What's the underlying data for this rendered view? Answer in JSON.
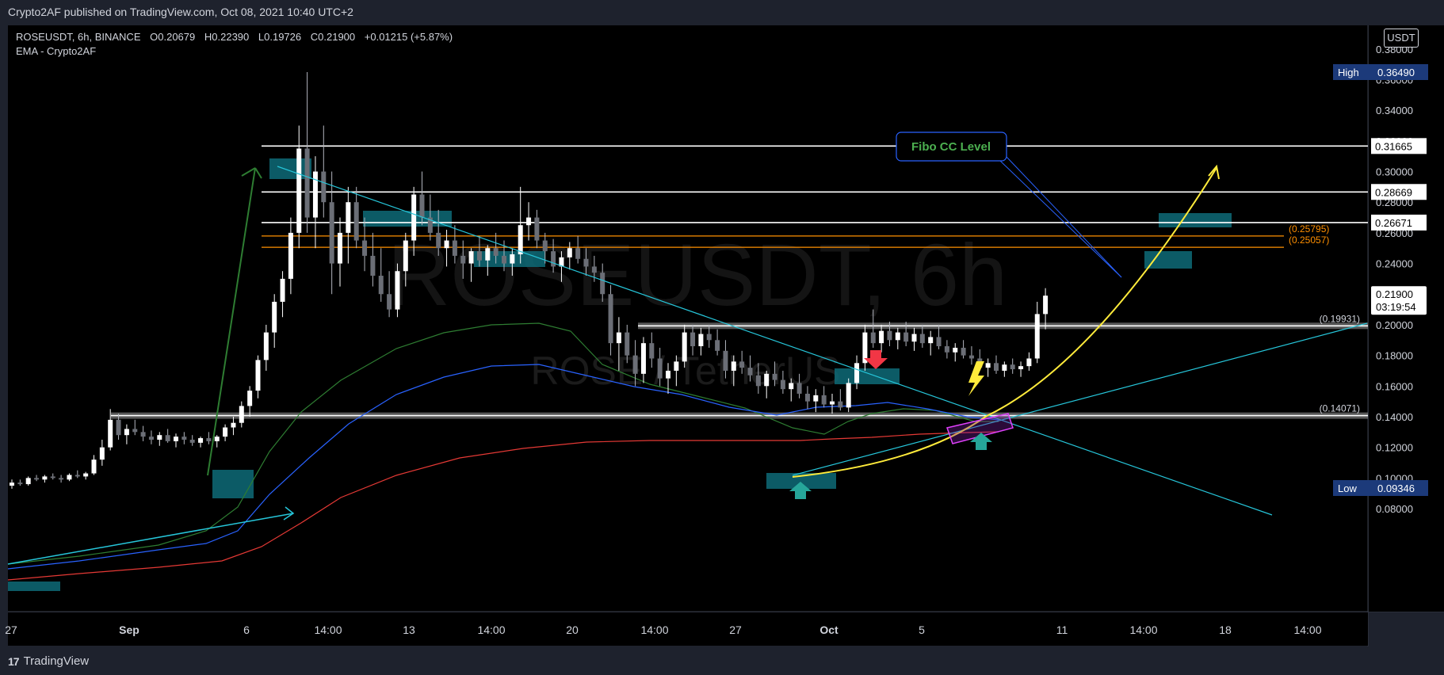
{
  "header": {
    "publisher_text": "Crypto2AF published on TradingView.com, Oct 08, 2021 10:40 UTC+2"
  },
  "legend": {
    "symbol_line": "ROSEUSDT, 6h, BINANCE",
    "open_label": "O",
    "open": "0.20679",
    "high_label": "H",
    "high": "0.22390",
    "low_label": "L",
    "low": "0.19726",
    "close_label": "C",
    "close": "0.21900",
    "change": "+0.01215 (+5.87%)",
    "indicator": "EMA - Crypto2AF"
  },
  "currency": "USDT",
  "watermark": {
    "main": "ROSEUSDT, 6h",
    "sub": "ROSE / TetherUS"
  },
  "footer": {
    "brand": "TradingView"
  },
  "colors": {
    "background": "#000000",
    "candle": "#ffffff",
    "ema_green": "#2e7d32",
    "ema_blue": "#2962ff",
    "ema_red": "#e53935",
    "trendline": "#26c6da",
    "fib": "#ff8f00",
    "zone": "#0e6b78",
    "curve": "#ffeb3b",
    "highlight": "#e040fb",
    "arrow_red": "#f23645",
    "arrow_teal": "#26a69a"
  },
  "chart_data": {
    "type": "candlestick",
    "y_axis": {
      "min": 0.065,
      "max": 0.395,
      "ticks": [
        0.08,
        0.1,
        0.12,
        0.14,
        0.16,
        0.18,
        0.2,
        0.22,
        0.24,
        0.26,
        0.28,
        0.3,
        0.32,
        0.34,
        0.36,
        0.38
      ]
    },
    "x_axis": {
      "ticks": [
        "27",
        "Sep",
        "6",
        "14:00",
        "13",
        "14:00",
        "20",
        "14:00",
        "27",
        "Oct",
        "5",
        "11",
        "14:00",
        "18",
        "14:00"
      ]
    },
    "price_labels": {
      "high": {
        "label": "High",
        "value": 0.3649,
        "text": "0.36490"
      },
      "low": {
        "label": "Low",
        "value": 0.09346,
        "text": "0.09346"
      },
      "current": {
        "value": 0.219,
        "text": "0.21900",
        "countdown": "03:19:54"
      },
      "levels": [
        {
          "value": 0.31665,
          "text": "0.31665"
        },
        {
          "value": 0.28669,
          "text": "0.28669"
        },
        {
          "value": 0.26671,
          "text": "0.26671"
        }
      ]
    },
    "horizontal_levels": [
      {
        "value": 0.31665,
        "color": "#ffffff"
      },
      {
        "value": 0.28669,
        "color": "#ffffff"
      },
      {
        "value": 0.26671,
        "color": "#ffffff"
      },
      {
        "value": 0.25795,
        "color": "#ff8f00",
        "label": "(0.25795)"
      },
      {
        "value": 0.25057,
        "color": "#ff8f00",
        "label": "(0.25057)"
      },
      {
        "value": 0.19931,
        "color": "#ffffff",
        "label": "(0.19931)"
      },
      {
        "value": 0.14071,
        "color": "#ffffff",
        "label": "(0.14071)"
      }
    ],
    "annotation": {
      "text": "Fibo CC Level"
    },
    "candles": [
      [
        0.095,
        0.099,
        0.093,
        0.097
      ],
      [
        0.097,
        0.099,
        0.095,
        0.096
      ],
      [
        0.096,
        0.101,
        0.095,
        0.1
      ],
      [
        0.1,
        0.102,
        0.098,
        0.099
      ],
      [
        0.099,
        0.102,
        0.097,
        0.101
      ],
      [
        0.101,
        0.103,
        0.099,
        0.1
      ],
      [
        0.1,
        0.102,
        0.097,
        0.099
      ],
      [
        0.099,
        0.103,
        0.098,
        0.102
      ],
      [
        0.102,
        0.105,
        0.1,
        0.101
      ],
      [
        0.101,
        0.104,
        0.099,
        0.103
      ],
      [
        0.103,
        0.115,
        0.102,
        0.112
      ],
      [
        0.112,
        0.125,
        0.108,
        0.12
      ],
      [
        0.12,
        0.145,
        0.118,
        0.138
      ],
      [
        0.138,
        0.142,
        0.125,
        0.128
      ],
      [
        0.128,
        0.135,
        0.122,
        0.132
      ],
      [
        0.132,
        0.138,
        0.128,
        0.13
      ],
      [
        0.13,
        0.134,
        0.124,
        0.127
      ],
      [
        0.127,
        0.131,
        0.122,
        0.125
      ],
      [
        0.125,
        0.13,
        0.121,
        0.128
      ],
      [
        0.128,
        0.132,
        0.123,
        0.124
      ],
      [
        0.124,
        0.129,
        0.12,
        0.127
      ],
      [
        0.127,
        0.13,
        0.122,
        0.125
      ],
      [
        0.125,
        0.128,
        0.121,
        0.123
      ],
      [
        0.123,
        0.127,
        0.12,
        0.126
      ],
      [
        0.126,
        0.13,
        0.122,
        0.124
      ],
      [
        0.124,
        0.128,
        0.12,
        0.127
      ],
      [
        0.127,
        0.135,
        0.124,
        0.133
      ],
      [
        0.133,
        0.14,
        0.128,
        0.136
      ],
      [
        0.136,
        0.15,
        0.133,
        0.147
      ],
      [
        0.147,
        0.16,
        0.14,
        0.157
      ],
      [
        0.157,
        0.18,
        0.152,
        0.177
      ],
      [
        0.177,
        0.2,
        0.17,
        0.195
      ],
      [
        0.195,
        0.22,
        0.185,
        0.215
      ],
      [
        0.215,
        0.235,
        0.205,
        0.23
      ],
      [
        0.23,
        0.27,
        0.22,
        0.26
      ],
      [
        0.26,
        0.33,
        0.25,
        0.315
      ],
      [
        0.315,
        0.3649,
        0.26,
        0.27
      ],
      [
        0.27,
        0.31,
        0.25,
        0.3
      ],
      [
        0.3,
        0.33,
        0.27,
        0.28
      ],
      [
        0.28,
        0.3,
        0.22,
        0.24
      ],
      [
        0.24,
        0.27,
        0.225,
        0.26
      ],
      [
        0.26,
        0.29,
        0.24,
        0.28
      ],
      [
        0.28,
        0.29,
        0.25,
        0.255
      ],
      [
        0.255,
        0.27,
        0.235,
        0.245
      ],
      [
        0.245,
        0.26,
        0.225,
        0.232
      ],
      [
        0.232,
        0.25,
        0.215,
        0.22
      ],
      [
        0.22,
        0.235,
        0.205,
        0.21
      ],
      [
        0.21,
        0.24,
        0.205,
        0.235
      ],
      [
        0.235,
        0.26,
        0.225,
        0.255
      ],
      [
        0.255,
        0.29,
        0.245,
        0.285
      ],
      [
        0.285,
        0.3,
        0.265,
        0.27
      ],
      [
        0.27,
        0.285,
        0.255,
        0.26
      ],
      [
        0.26,
        0.275,
        0.245,
        0.25
      ],
      [
        0.25,
        0.262,
        0.238,
        0.255
      ],
      [
        0.255,
        0.265,
        0.24,
        0.245
      ],
      [
        0.245,
        0.255,
        0.23,
        0.24
      ],
      [
        0.24,
        0.25,
        0.228,
        0.248
      ],
      [
        0.248,
        0.258,
        0.238,
        0.242
      ],
      [
        0.242,
        0.252,
        0.232,
        0.25
      ],
      [
        0.25,
        0.26,
        0.24,
        0.245
      ],
      [
        0.245,
        0.255,
        0.235,
        0.24
      ],
      [
        0.24,
        0.25,
        0.232,
        0.246
      ],
      [
        0.246,
        0.29,
        0.24,
        0.265
      ],
      [
        0.265,
        0.28,
        0.255,
        0.27
      ],
      [
        0.27,
        0.275,
        0.25,
        0.255
      ],
      [
        0.255,
        0.26,
        0.24,
        0.248
      ],
      [
        0.248,
        0.256,
        0.234,
        0.238
      ],
      [
        0.238,
        0.248,
        0.228,
        0.244
      ],
      [
        0.244,
        0.254,
        0.236,
        0.25
      ],
      [
        0.25,
        0.258,
        0.24,
        0.243
      ],
      [
        0.243,
        0.25,
        0.232,
        0.238
      ],
      [
        0.238,
        0.245,
        0.228,
        0.234
      ],
      [
        0.234,
        0.24,
        0.215,
        0.22
      ],
      [
        0.22,
        0.226,
        0.18,
        0.188
      ],
      [
        0.188,
        0.205,
        0.17,
        0.195
      ],
      [
        0.195,
        0.2,
        0.175,
        0.18
      ],
      [
        0.18,
        0.19,
        0.16,
        0.168
      ],
      [
        0.168,
        0.192,
        0.162,
        0.188
      ],
      [
        0.188,
        0.195,
        0.172,
        0.178
      ],
      [
        0.178,
        0.185,
        0.16,
        0.165
      ],
      [
        0.165,
        0.175,
        0.155,
        0.17
      ],
      [
        0.17,
        0.18,
        0.16,
        0.176
      ],
      [
        0.176,
        0.2,
        0.172,
        0.195
      ],
      [
        0.195,
        0.2,
        0.18,
        0.186
      ],
      [
        0.186,
        0.198,
        0.18,
        0.194
      ],
      [
        0.194,
        0.2,
        0.185,
        0.19
      ],
      [
        0.19,
        0.197,
        0.18,
        0.183
      ],
      [
        0.183,
        0.19,
        0.165,
        0.17
      ],
      [
        0.17,
        0.18,
        0.16,
        0.176
      ],
      [
        0.176,
        0.183,
        0.168,
        0.172
      ],
      [
        0.172,
        0.18,
        0.163,
        0.167
      ],
      [
        0.167,
        0.175,
        0.155,
        0.16
      ],
      [
        0.16,
        0.17,
        0.152,
        0.168
      ],
      [
        0.168,
        0.176,
        0.16,
        0.164
      ],
      [
        0.164,
        0.17,
        0.155,
        0.158
      ],
      [
        0.158,
        0.165,
        0.15,
        0.162
      ],
      [
        0.162,
        0.168,
        0.152,
        0.155
      ],
      [
        0.155,
        0.16,
        0.145,
        0.15
      ],
      [
        0.15,
        0.158,
        0.143,
        0.154
      ],
      [
        0.154,
        0.16,
        0.146,
        0.148
      ],
      [
        0.148,
        0.155,
        0.142,
        0.15
      ],
      [
        0.15,
        0.158,
        0.144,
        0.146
      ],
      [
        0.146,
        0.165,
        0.143,
        0.162
      ],
      [
        0.162,
        0.18,
        0.158,
        0.175
      ],
      [
        0.175,
        0.2,
        0.17,
        0.195
      ],
      [
        0.195,
        0.21,
        0.185,
        0.188
      ],
      [
        0.188,
        0.2,
        0.182,
        0.196
      ],
      [
        0.196,
        0.202,
        0.186,
        0.19
      ],
      [
        0.19,
        0.198,
        0.184,
        0.195
      ],
      [
        0.195,
        0.202,
        0.186,
        0.189
      ],
      [
        0.189,
        0.198,
        0.183,
        0.194
      ],
      [
        0.194,
        0.2,
        0.185,
        0.188
      ],
      [
        0.188,
        0.196,
        0.18,
        0.192
      ],
      [
        0.192,
        0.2,
        0.184,
        0.186
      ],
      [
        0.186,
        0.19,
        0.178,
        0.182
      ],
      [
        0.182,
        0.188,
        0.176,
        0.185
      ],
      [
        0.185,
        0.19,
        0.178,
        0.18
      ],
      [
        0.18,
        0.186,
        0.174,
        0.178
      ],
      [
        0.178,
        0.184,
        0.17,
        0.172
      ],
      [
        0.172,
        0.178,
        0.166,
        0.175
      ],
      [
        0.175,
        0.18,
        0.168,
        0.17
      ],
      [
        0.17,
        0.176,
        0.166,
        0.174
      ],
      [
        0.174,
        0.178,
        0.168,
        0.171
      ],
      [
        0.171,
        0.176,
        0.166,
        0.173
      ],
      [
        0.173,
        0.182,
        0.17,
        0.178
      ],
      [
        0.178,
        0.215,
        0.175,
        0.207
      ],
      [
        0.207,
        0.2239,
        0.197,
        0.219
      ]
    ]
  }
}
